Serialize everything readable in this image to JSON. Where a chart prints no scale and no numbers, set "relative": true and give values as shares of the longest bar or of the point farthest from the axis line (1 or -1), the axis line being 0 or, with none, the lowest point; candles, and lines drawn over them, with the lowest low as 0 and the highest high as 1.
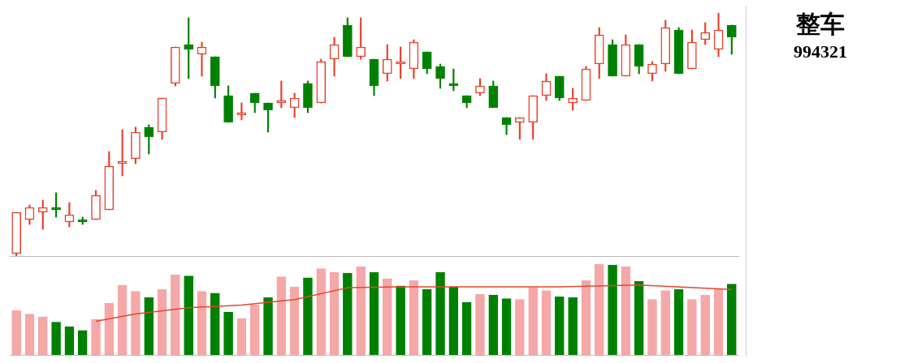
{
  "chart_data": [
    {
      "type": "candlestick",
      "relative": true,
      "tick_labels": false,
      "grid": false,
      "legend": false,
      "categories": [
        null,
        null,
        null,
        null,
        null,
        null,
        null,
        null,
        null,
        null,
        null,
        null,
        null,
        null,
        null,
        null,
        null,
        null,
        null,
        null,
        null,
        null,
        null,
        null,
        null,
        null,
        null,
        null,
        null,
        null,
        null,
        null,
        null,
        null,
        null,
        null,
        null,
        null,
        null,
        null,
        null,
        null,
        null,
        null,
        null,
        null,
        null,
        null,
        null,
        null,
        null,
        null,
        null,
        null,
        null
      ],
      "ohlc": [
        [
          0.01,
          0.18,
          0,
          0.18
        ],
        [
          0.15,
          0.21,
          0.13,
          0.2
        ],
        [
          0.18,
          0.23,
          0.11,
          0.2
        ],
        [
          0.2,
          0.26,
          0.16,
          0.19
        ],
        [
          0.14,
          0.22,
          0.12,
          0.17
        ],
        [
          0.15,
          0.16,
          0.13,
          0.14
        ],
        [
          0.15,
          0.27,
          0.15,
          0.25
        ],
        [
          0.19,
          0.43,
          0.19,
          0.37
        ],
        [
          0.38,
          0.52,
          0.33,
          0.39
        ],
        [
          0.4,
          0.53,
          0.38,
          0.51
        ],
        [
          0.53,
          0.54,
          0.42,
          0.49
        ],
        [
          0.51,
          0.65,
          0.48,
          0.65
        ],
        [
          0.71,
          0.86,
          0.7,
          0.86
        ],
        [
          0.87,
          0.98,
          0.73,
          0.85
        ],
        [
          0.83,
          0.88,
          0.74,
          0.86
        ],
        [
          0.82,
          0.82,
          0.65,
          0.7
        ],
        [
          0.66,
          0.7,
          0.55,
          0.55
        ],
        [
          0.58,
          0.63,
          0.56,
          0.59
        ],
        [
          0.67,
          0.67,
          0.59,
          0.63
        ],
        [
          0.63,
          0.63,
          0.51,
          0.6
        ],
        [
          0.63,
          0.72,
          0.61,
          0.64
        ],
        [
          0.61,
          0.67,
          0.57,
          0.65
        ],
        [
          0.71,
          0.72,
          0.59,
          0.61
        ],
        [
          0.63,
          0.81,
          0.63,
          0.8
        ],
        [
          0.81,
          0.9,
          0.74,
          0.87
        ],
        [
          0.95,
          0.98,
          0.82,
          0.82
        ],
        [
          0.82,
          0.98,
          0.81,
          0.86
        ],
        [
          0.81,
          0.81,
          0.66,
          0.7
        ],
        [
          0.75,
          0.87,
          0.72,
          0.81
        ],
        [
          0.79,
          0.86,
          0.73,
          0.8
        ],
        [
          0.77,
          0.89,
          0.73,
          0.88
        ],
        [
          0.84,
          0.84,
          0.75,
          0.77
        ],
        [
          0.78,
          0.79,
          0.69,
          0.73
        ],
        [
          0.71,
          0.77,
          0.68,
          0.7
        ],
        [
          0.66,
          0.66,
          0.61,
          0.63
        ],
        [
          0.67,
          0.73,
          0.66,
          0.7
        ],
        [
          0.7,
          0.72,
          0.61,
          0.61
        ],
        [
          0.57,
          0.57,
          0.5,
          0.54
        ],
        [
          0.55,
          0.57,
          0.48,
          0.57
        ],
        [
          0.55,
          0.66,
          0.48,
          0.66
        ],
        [
          0.66,
          0.75,
          0.64,
          0.72
        ],
        [
          0.74,
          0.74,
          0.64,
          0.65
        ],
        [
          0.63,
          0.69,
          0.6,
          0.65
        ],
        [
          0.64,
          0.78,
          0.64,
          0.77
        ],
        [
          0.79,
          0.94,
          0.73,
          0.91
        ],
        [
          0.87,
          0.89,
          0.74,
          0.74
        ],
        [
          0.74,
          0.91,
          0.74,
          0.87
        ],
        [
          0.87,
          0.87,
          0.75,
          0.78
        ],
        [
          0.75,
          0.8,
          0.72,
          0.79
        ],
        [
          0.79,
          0.97,
          0.76,
          0.94
        ],
        [
          0.93,
          0.94,
          0.75,
          0.75
        ],
        [
          0.77,
          0.93,
          0.77,
          0.88
        ],
        [
          0.89,
          0.96,
          0.87,
          0.92
        ],
        [
          0.85,
          1,
          0.82,
          0.93
        ],
        [
          0.95,
          0.95,
          0.83,
          0.9
        ]
      ],
      "colors": [
        "#e8402a",
        "#e8402a",
        "#e8402a",
        "#008000",
        "#e8402a",
        "#008000",
        "#e8402a",
        "#e8402a",
        "#e8402a",
        "#e8402a",
        "#008000",
        "#e8402a",
        "#e8402a",
        "#008000",
        "#e8402a",
        "#008000",
        "#008000",
        "#e8402a",
        "#008000",
        "#008000",
        "#e8402a",
        "#e8402a",
        "#008000",
        "#e8402a",
        "#e8402a",
        "#008000",
        "#e8402a",
        "#008000",
        "#e8402a",
        "#e8402a",
        "#e8402a",
        "#008000",
        "#008000",
        "#008000",
        "#008000",
        "#e8402a",
        "#008000",
        "#008000",
        "#e8402a",
        "#e8402a",
        "#e8402a",
        "#008000",
        "#e8402a",
        "#e8402a",
        "#e8402a",
        "#008000",
        "#e8402a",
        "#008000",
        "#e8402a",
        "#e8402a",
        "#008000",
        "#e8402a",
        "#e8402a",
        "#e8402a",
        "#008000"
      ]
    },
    {
      "type": "bar",
      "relative": true,
      "tick_labels": false,
      "grid": false,
      "legend": false,
      "categories": [
        null,
        null,
        null,
        null,
        null,
        null,
        null,
        null,
        null,
        null,
        null,
        null,
        null,
        null,
        null,
        null,
        null,
        null,
        null,
        null,
        null,
        null,
        null,
        null,
        null,
        null,
        null,
        null,
        null,
        null,
        null,
        null,
        null,
        null,
        null,
        null,
        null,
        null,
        null,
        null,
        null,
        null,
        null,
        null,
        null,
        null,
        null,
        null,
        null,
        null,
        null,
        null,
        null,
        null,
        null
      ],
      "series": [
        {
          "type": "bar",
          "values": [
            0.49,
            0.45,
            0.42,
            0.36,
            0.31,
            0.27,
            0.39,
            0.57,
            0.77,
            0.7,
            0.63,
            0.72,
            0.88,
            0.87,
            0.7,
            0.68,
            0.47,
            0.4,
            0.55,
            0.63,
            0.86,
            0.75,
            0.85,
            0.95,
            0.91,
            0.9,
            0.97,
            0.91,
            0.84,
            0.76,
            0.82,
            0.72,
            0.91,
            0.75,
            0.58,
            0.67,
            0.66,
            0.62,
            0.61,
            0.74,
            0.71,
            0.64,
            0.63,
            0.82,
            1,
            0.99,
            0.97,
            0.81,
            0.61,
            0.71,
            0.72,
            0.61,
            0.66,
            0.72,
            0.78
          ],
          "colors": [
            "#f4a8a8",
            "#f4a8a8",
            "#f4a8a8",
            "#008000",
            "#008000",
            "#008000",
            "#f4a8a8",
            "#f4a8a8",
            "#f4a8a8",
            "#f4a8a8",
            "#008000",
            "#f4a8a8",
            "#f4a8a8",
            "#008000",
            "#f4a8a8",
            "#008000",
            "#008000",
            "#f4a8a8",
            "#f4a8a8",
            "#008000",
            "#f4a8a8",
            "#f4a8a8",
            "#008000",
            "#f4a8a8",
            "#f4a8a8",
            "#008000",
            "#f4a8a8",
            "#008000",
            "#f4a8a8",
            "#008000",
            "#f4a8a8",
            "#008000",
            "#008000",
            "#008000",
            "#008000",
            "#f4a8a8",
            "#008000",
            "#008000",
            "#f4a8a8",
            "#f4a8a8",
            "#f4a8a8",
            "#008000",
            "#008000",
            "#f4a8a8",
            "#f4a8a8",
            "#008000",
            "#f4a8a8",
            "#008000",
            "#f4a8a8",
            "#f4a8a8",
            "#008000",
            "#f4a8a8",
            "#f4a8a8",
            "#f4a8a8",
            "#008000"
          ]
        },
        {
          "type": "line",
          "color": "#e04830",
          "values": [
            null,
            null,
            null,
            null,
            null,
            null,
            0.37,
            null,
            null,
            0.45,
            null,
            null,
            null,
            0.52,
            null,
            null,
            null,
            0.55,
            null,
            null,
            null,
            0.61,
            null,
            null,
            null,
            0.74,
            null,
            null,
            null,
            0.75,
            null,
            null,
            null,
            null,
            null,
            0.75,
            null,
            null,
            null,
            null,
            null,
            0.75,
            null,
            null,
            null,
            null,
            null,
            0.77,
            null,
            null,
            null,
            null,
            null,
            null,
            0.72
          ]
        }
      ]
    },
    {
      "type": "other",
      "title": "整车",
      "subtitle": "994321"
    }
  ]
}
